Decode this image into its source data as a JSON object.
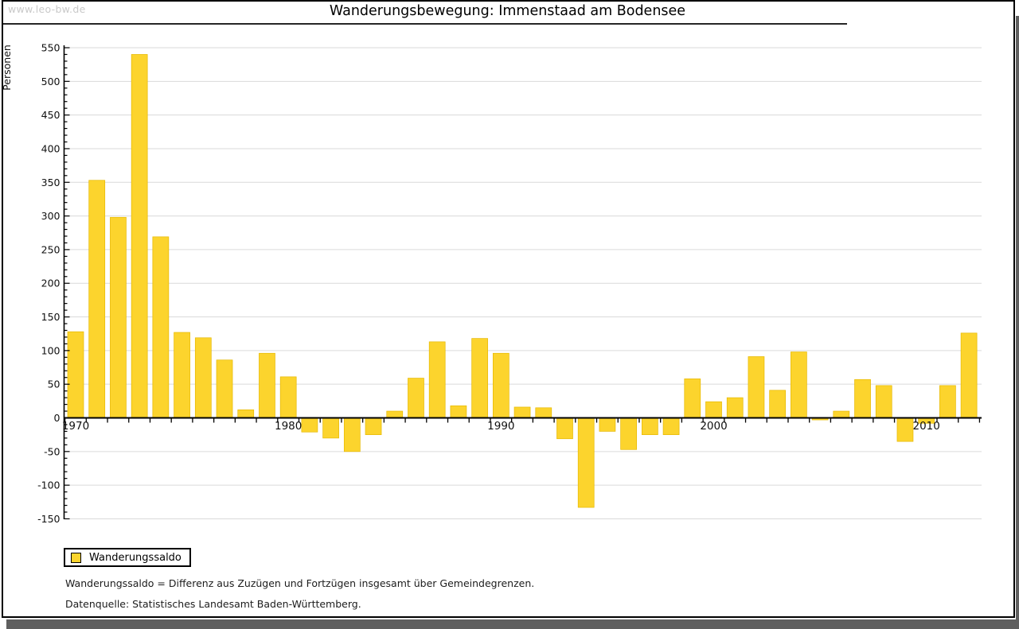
{
  "header": {
    "watermark": "www.leo-bw.de",
    "title": "Wanderungsbewegung: Immenstaad am Bodensee"
  },
  "chart_data": {
    "type": "bar",
    "title": "Wanderungsbewegung: Immenstaad am Bodensee",
    "xlabel": "",
    "ylabel": "Personen",
    "ylim": [
      -150,
      550
    ],
    "ytick_step": 50,
    "y_ticks": [
      -150,
      -100,
      -50,
      0,
      50,
      100,
      150,
      200,
      250,
      300,
      350,
      400,
      450,
      500,
      550
    ],
    "x_tick_labels": [
      "1970",
      "1980",
      "1990",
      "2000",
      "2010"
    ],
    "grid": true,
    "legend_position": "bottom-left",
    "bar_color": "#fcd42d",
    "bar_edge_color": "#e6b800",
    "grid_color": "#dadada",
    "x": [
      1970,
      1971,
      1972,
      1973,
      1974,
      1975,
      1976,
      1977,
      1978,
      1979,
      1980,
      1981,
      1982,
      1983,
      1984,
      1985,
      1986,
      1987,
      1988,
      1989,
      1990,
      1991,
      1992,
      1993,
      1994,
      1995,
      1996,
      1997,
      1998,
      1999,
      2000,
      2001,
      2002,
      2003,
      2004,
      2005,
      2006,
      2007,
      2008,
      2009,
      2010,
      2011,
      2012
    ],
    "series": [
      {
        "name": "Wanderungssaldo",
        "values": [
          128,
          353,
          298,
          540,
          269,
          127,
          119,
          86,
          12,
          96,
          61,
          -21,
          -30,
          -50,
          -25,
          10,
          59,
          113,
          18,
          118,
          96,
          16,
          15,
          -31,
          -133,
          -20,
          -47,
          -25,
          -25,
          58,
          24,
          30,
          91,
          41,
          98,
          -3,
          10,
          57,
          48,
          -35,
          -8,
          48,
          126
        ]
      }
    ]
  },
  "legend": {
    "label": "Wanderungssaldo",
    "swatch_color": "#fcd42d"
  },
  "footnotes": [
    "Wanderungssaldo = Differenz aus Zuzügen und Fortzügen insgesamt über Gemeindegrenzen.",
    "Datenquelle: Statistisches Landesamt Baden-Württemberg."
  ]
}
